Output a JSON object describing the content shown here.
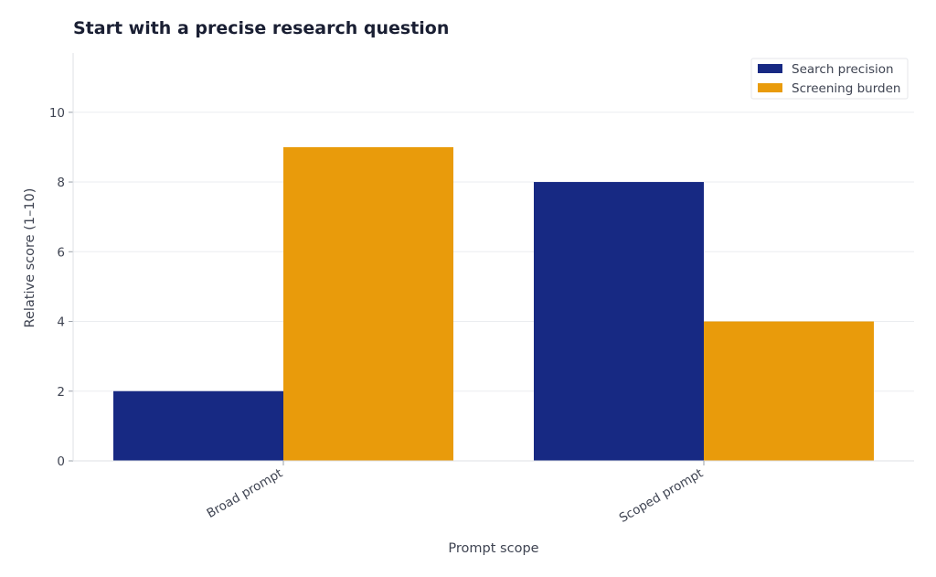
{
  "chart_data": {
    "type": "bar",
    "title": "Start with a precise research question",
    "xlabel": "Prompt scope",
    "ylabel": "Relative score (1–10)",
    "categories": [
      "Broad prompt",
      "Scoped prompt"
    ],
    "series": [
      {
        "name": "Search precision",
        "values": [
          2,
          8
        ],
        "color": "#172983"
      },
      {
        "name": "Screening burden",
        "values": [
          9,
          4
        ],
        "color": "#e99b0b"
      }
    ],
    "ylim": [
      0,
      11.7
    ],
    "yticks": [
      0,
      2,
      4,
      6,
      8,
      10
    ],
    "grid": true,
    "legend": "top-right"
  }
}
